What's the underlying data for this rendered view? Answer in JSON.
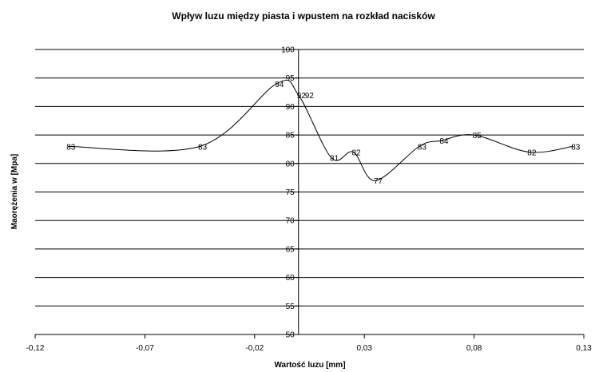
{
  "chart_data": {
    "type": "line",
    "title": "Wpływ luzu między piasta i wpustem na rozkład nacisków",
    "xlabel": "Wartość luzu [mm]",
    "ylabel": "Maorężenia w [Mpa]",
    "xlim": [
      -0.12,
      0.13
    ],
    "ylim": [
      50,
      100
    ],
    "x_ticks": [
      -0.12,
      -0.07,
      -0.02,
      0.03,
      0.08,
      0.13
    ],
    "x_tick_labels": [
      "-0,12",
      "-0,07",
      "-0,02",
      "0,03",
      "0,08",
      "0,13"
    ],
    "y_ticks": [
      50,
      55,
      60,
      65,
      70,
      75,
      80,
      85,
      90,
      95,
      100
    ],
    "y_tick_labels": [
      "50",
      "55",
      "60",
      "65",
      "70",
      "75",
      "80",
      "85",
      "90",
      "95",
      "100"
    ],
    "grid": "horizontal",
    "legend": "none",
    "series": [
      {
        "x": [
          -0.105,
          -0.045,
          -0.01,
          0.0,
          0.015,
          0.025,
          0.035,
          0.055,
          0.065,
          0.08,
          0.105,
          0.125
        ],
        "y": [
          83,
          83,
          94,
          92,
          81,
          82,
          77,
          83,
          84,
          85,
          82,
          83
        ],
        "labels": [
          "83",
          "83",
          "94",
          "92",
          "81",
          "82",
          "77",
          "83",
          "84",
          "85",
          "82",
          "83"
        ],
        "extra_labels": [
          "92"
        ]
      }
    ],
    "colors": {
      "line": "#000000",
      "grid": "#000000"
    }
  }
}
